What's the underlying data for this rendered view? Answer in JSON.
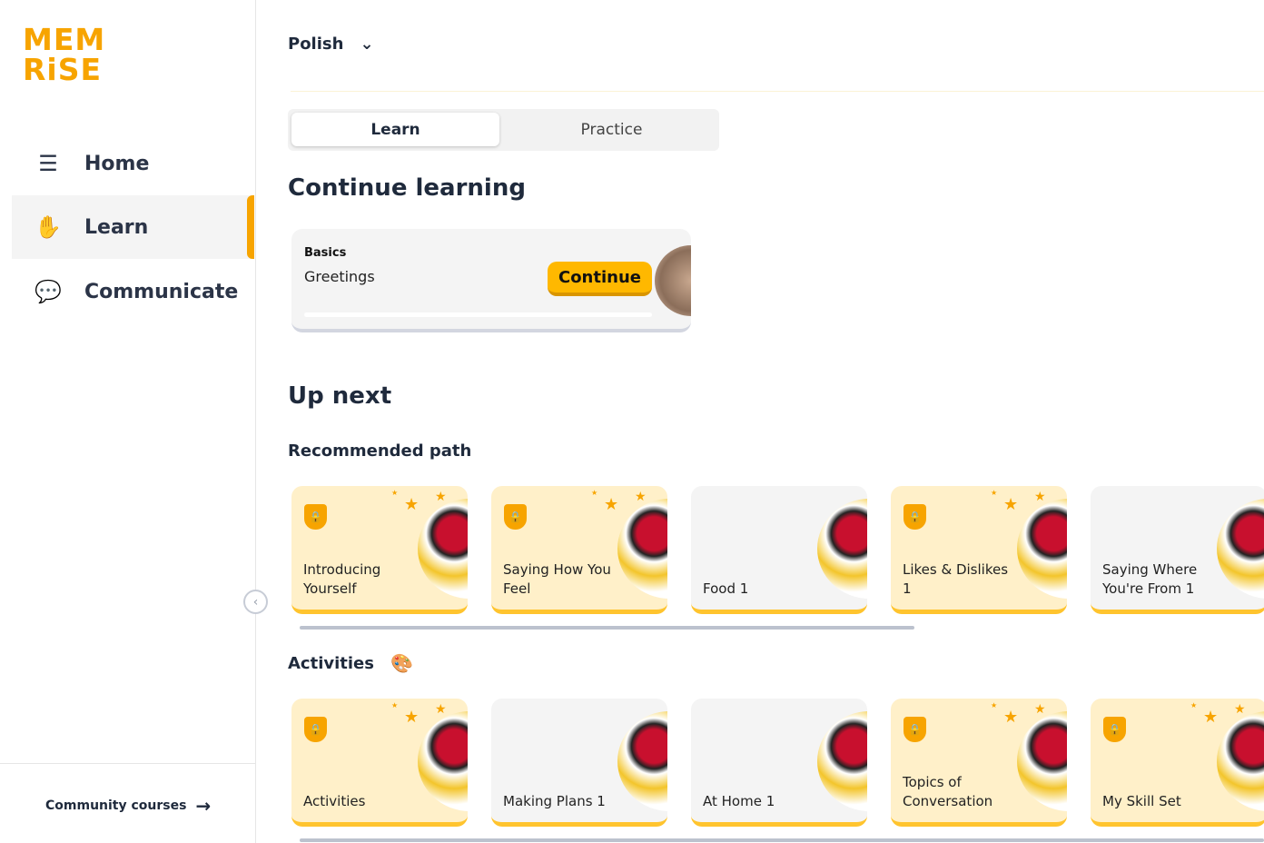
{
  "logo": {
    "line1": "MEM",
    "line2": "RiSE"
  },
  "sidebar": {
    "items": [
      {
        "label": "Home",
        "icon": "home-icon"
      },
      {
        "label": "Learn",
        "icon": "learn-icon",
        "active": true
      },
      {
        "label": "Communicate",
        "icon": "chat-icon"
      }
    ],
    "community": "Community courses"
  },
  "header": {
    "language": "Polish"
  },
  "tabs": {
    "learn": "Learn",
    "practice": "Practice"
  },
  "continue": {
    "heading": "Continue learning",
    "category": "Basics",
    "name": "Greetings",
    "button": "Continue",
    "progress": 0
  },
  "upnext": {
    "heading": "Up next",
    "recommended": "Recommended path",
    "activities": "Activities"
  },
  "recommended": [
    {
      "title": "Introducing Yourself",
      "locked": true
    },
    {
      "title": "Saying How You Feel",
      "locked": true
    },
    {
      "title": "Food 1",
      "locked": false
    },
    {
      "title": "Likes & Dislikes 1",
      "locked": true
    },
    {
      "title": "Saying Where You're From 1",
      "locked": false
    }
  ],
  "activities": [
    {
      "title": "Activities",
      "locked": true
    },
    {
      "title": "Making Plans 1",
      "locked": false
    },
    {
      "title": "At Home 1",
      "locked": false
    },
    {
      "title": "Topics of Conversation",
      "locked": true
    },
    {
      "title": "My Skill Set",
      "locked": true
    }
  ],
  "colors": {
    "accent": "#f7a400",
    "button": "#ffb800",
    "locked_card": "#fff0c9",
    "card": "#f4f4f4"
  }
}
